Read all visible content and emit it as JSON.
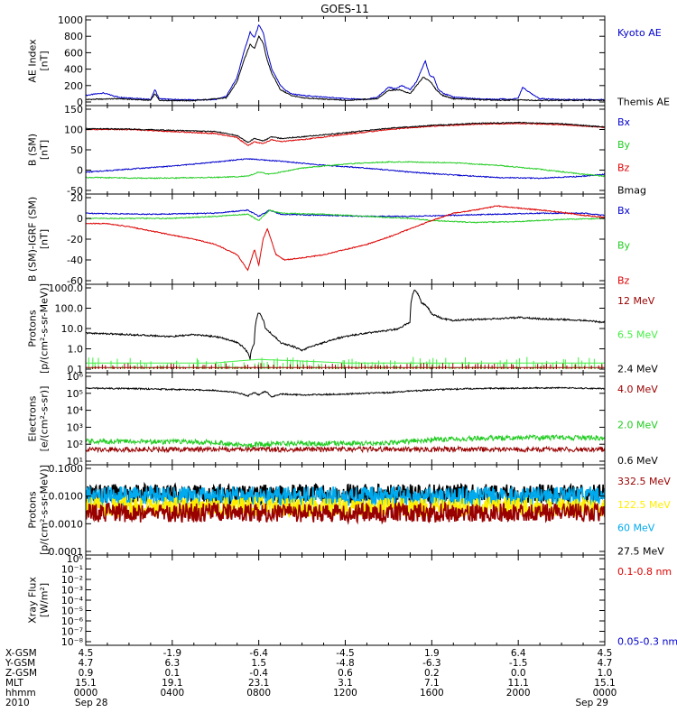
{
  "title": "GOES-11",
  "colors": {
    "black": "#000000",
    "blue": "#0000cc",
    "green": "#22cc22",
    "red": "#dd0000",
    "darkred": "#990000",
    "yellow": "#ffee00",
    "cyan": "#00aaee",
    "lime": "#44ee44"
  },
  "time_axis": {
    "start": "2010-09-28 00:00",
    "end": "2010-09-29 00:00",
    "rows": [
      {
        "label": "X-GSM",
        "values": [
          "4.5",
          "-1.9",
          "-6.4",
          "-4.5",
          "1.9",
          "6.4",
          "4.5"
        ]
      },
      {
        "label": "Y-GSM",
        "values": [
          "4.7",
          "6.3",
          "1.5",
          "-4.8",
          "-6.3",
          "-1.5",
          "4.7"
        ]
      },
      {
        "label": "Z-GSM",
        "values": [
          "0.9",
          "0.1",
          "-0.4",
          "0.6",
          "0.2",
          "0.0",
          "1.0"
        ]
      },
      {
        "label": "MLT",
        "values": [
          "15.1",
          "19.1",
          "23.1",
          "3.1",
          "7.1",
          "11.1",
          "15.1"
        ]
      },
      {
        "label": "hhmm",
        "values": [
          "0000",
          "0400",
          "0800",
          "1200",
          "1600",
          "2000",
          "0000"
        ]
      },
      {
        "label": "2010",
        "values": [
          "Sep 28",
          "",
          "",
          "",
          "",
          "",
          "Sep 29"
        ]
      }
    ]
  },
  "chart_data": [
    {
      "type": "line",
      "ylabel": "AE Index\n[nT]",
      "ylim": [
        0,
        1000
      ],
      "yticks": [
        "0",
        "200",
        "400",
        "600",
        "800",
        "1000"
      ],
      "legend": [
        {
          "name": "Kyoto AE",
          "color": "#0000cc"
        },
        {
          "name": "Themis AE",
          "color": "#000000"
        }
      ],
      "series": [
        {
          "name": "Kyoto AE",
          "color": "#0000cc",
          "hours": [
            0,
            0.8,
            1.5,
            2.5,
            3,
            3.2,
            3.4,
            4,
            5,
            6,
            6.5,
            7,
            7.3,
            7.6,
            7.8,
            8,
            8.2,
            8.4,
            8.6,
            8.8,
            9,
            9.2,
            9.5,
            10,
            11,
            12,
            13,
            13.5,
            14,
            14.3,
            14.6,
            15,
            15.3,
            15.5,
            15.7,
            15.9,
            16.1,
            16.3,
            16.6,
            17,
            18,
            19,
            19.3,
            19.5,
            19.7,
            20,
            20.2,
            20.5,
            21,
            22,
            23,
            24
          ],
          "values": [
            80,
            110,
            60,
            40,
            30,
            150,
            40,
            30,
            25,
            30,
            70,
            300,
            600,
            850,
            780,
            940,
            850,
            600,
            400,
            300,
            200,
            150,
            100,
            80,
            60,
            40,
            30,
            60,
            180,
            160,
            200,
            150,
            250,
            380,
            500,
            320,
            300,
            150,
            100,
            60,
            40,
            30,
            40,
            30,
            30,
            50,
            180,
            120,
            40,
            30,
            30,
            30
          ]
        },
        {
          "name": "Themis AE",
          "color": "#000000",
          "hours": [
            0,
            1.5,
            3,
            3.2,
            3.4,
            5,
            6.5,
            7,
            7.3,
            7.6,
            7.8,
            8,
            8.2,
            8.4,
            8.6,
            8.8,
            9,
            9.5,
            10,
            12,
            13.5,
            14,
            14.5,
            15,
            15.3,
            15.6,
            15.9,
            16.2,
            16.5,
            17,
            19,
            20,
            21,
            24
          ],
          "values": [
            30,
            40,
            20,
            100,
            20,
            15,
            50,
            250,
            500,
            700,
            650,
            800,
            720,
            500,
            350,
            250,
            150,
            80,
            50,
            20,
            40,
            140,
            150,
            100,
            200,
            300,
            260,
            150,
            80,
            40,
            20,
            25,
            20,
            20
          ]
        }
      ]
    },
    {
      "type": "line",
      "ylabel": "B (SM)\n[nT]",
      "ylim": [
        -50,
        150
      ],
      "yticks": [
        "-50",
        "0",
        "50",
        "100",
        "150"
      ],
      "legend": [
        {
          "name": "Bx",
          "color": "#0000cc"
        },
        {
          "name": "By",
          "color": "#22cc22"
        },
        {
          "name": "Bz",
          "color": "#dd0000"
        },
        {
          "name": "Bmag",
          "color": "#000000"
        }
      ],
      "series": [
        {
          "name": "Bx",
          "color": "#0000cc",
          "hours": [
            0,
            4,
            6,
            7.5,
            8.2,
            9,
            11,
            13,
            15,
            17,
            19,
            21,
            23,
            24
          ],
          "values": [
            -5,
            10,
            20,
            28,
            25,
            22,
            12,
            5,
            -5,
            -12,
            -18,
            -20,
            -15,
            -10
          ]
        },
        {
          "name": "By",
          "color": "#22cc22",
          "hours": [
            0,
            3,
            6,
            7.5,
            8,
            8.5,
            10,
            12,
            13,
            14,
            15,
            17,
            19,
            21,
            23,
            24
          ],
          "values": [
            -18,
            -20,
            -18,
            -15,
            -5,
            -10,
            5,
            15,
            18,
            20,
            20,
            18,
            12,
            2,
            -10,
            -15
          ]
        },
        {
          "name": "Bz",
          "color": "#dd0000",
          "hours": [
            0,
            2,
            4,
            6,
            7,
            7.5,
            7.8,
            8.2,
            8.6,
            9,
            10,
            12,
            14,
            16,
            18,
            20,
            22,
            24
          ],
          "values": [
            100,
            100,
            95,
            90,
            80,
            60,
            70,
            65,
            75,
            70,
            75,
            88,
            100,
            108,
            113,
            115,
            112,
            105
          ]
        },
        {
          "name": "Bmag",
          "color": "#000000",
          "hours": [
            0,
            2,
            4,
            6,
            7,
            7.5,
            7.8,
            8.2,
            8.6,
            9,
            10,
            12,
            14,
            16,
            18,
            20,
            22,
            24
          ],
          "values": [
            102,
            101,
            98,
            95,
            85,
            68,
            78,
            72,
            82,
            78,
            82,
            92,
            103,
            110,
            115,
            117,
            114,
            106
          ]
        }
      ]
    },
    {
      "type": "line",
      "ylabel": "B (SM)-IGRF (SM)\n[nT]",
      "ylim": [
        -60,
        20
      ],
      "yticks": [
        "-60",
        "-40",
        "-20",
        "0",
        "20"
      ],
      "legend": [
        {
          "name": "Bx",
          "color": "#0000cc"
        },
        {
          "name": "By",
          "color": "#22cc22"
        },
        {
          "name": "Bz",
          "color": "#dd0000"
        }
      ],
      "series": [
        {
          "name": "Bx",
          "color": "#0000cc",
          "hours": [
            0,
            3,
            6,
            7.5,
            8,
            8.5,
            9,
            11,
            13,
            15,
            17,
            19,
            21,
            23,
            24
          ],
          "values": [
            5,
            4,
            5,
            8,
            2,
            8,
            4,
            3,
            2,
            2,
            3,
            4,
            5,
            5,
            3
          ]
        },
        {
          "name": "By",
          "color": "#22cc22",
          "hours": [
            0,
            4,
            6,
            7.5,
            8,
            8.5,
            9,
            11,
            13,
            15,
            16,
            18,
            20,
            22,
            24
          ],
          "values": [
            0,
            0,
            2,
            4,
            -2,
            8,
            5,
            4,
            2,
            0,
            -2,
            -4,
            -3,
            -1,
            0
          ]
        },
        {
          "name": "Bz",
          "color": "#dd0000",
          "hours": [
            0,
            1,
            2,
            3,
            4,
            5,
            6,
            7,
            7.5,
            7.8,
            8,
            8.2,
            8.4,
            8.8,
            9.2,
            10,
            11,
            12,
            13,
            14,
            15,
            16,
            17,
            18,
            19,
            20,
            21,
            22,
            23,
            24
          ],
          "values": [
            -5,
            -5,
            -8,
            -12,
            -16,
            -20,
            -25,
            -35,
            -50,
            -30,
            -45,
            -20,
            -10,
            -35,
            -40,
            -38,
            -35,
            -30,
            -25,
            -18,
            -10,
            -2,
            5,
            8,
            12,
            10,
            8,
            6,
            3,
            1
          ]
        }
      ]
    },
    {
      "type": "line",
      "yscale": "log",
      "ylabel": "Protons\n[p/(cm²-s-sr-MeV)]",
      "ylim": [
        0.1,
        1000
      ],
      "yticks": [
        "0.1",
        "1.0",
        "10.0",
        "100.0",
        "1000.0"
      ],
      "legend": [
        {
          "name": "12 MeV",
          "color": "#990000"
        },
        {
          "name": "6.5 MeV",
          "color": "#44ee44"
        },
        {
          "name": "2.4 MeV",
          "color": "#000000"
        }
      ],
      "series": [
        {
          "name": "2.4 MeV",
          "color": "#000000",
          "hours": [
            0,
            2,
            4,
            5,
            6,
            7,
            7.6,
            7.8,
            8,
            8.3,
            8.6,
            9,
            10,
            11,
            12,
            13,
            14,
            14.5,
            15,
            15.2,
            15.5,
            16,
            16.5,
            17,
            18,
            19,
            20,
            21,
            22,
            23,
            24
          ],
          "values": [
            6,
            5,
            4,
            5,
            4,
            2,
            0.3,
            2,
            60,
            10,
            5,
            2,
            0.8,
            2,
            4,
            6,
            8,
            10,
            20,
            800,
            200,
            50,
            30,
            25,
            28,
            30,
            35,
            30,
            28,
            25,
            20
          ]
        },
        {
          "name": "6.5 MeV",
          "color": "#44ee44",
          "hours": [
            0,
            6,
            8,
            12,
            16,
            20,
            24
          ],
          "values": [
            0.2,
            0.2,
            0.3,
            0.2,
            0.2,
            0.2,
            0.2
          ]
        },
        {
          "name": "12 MeV",
          "color": "#990000",
          "hours": [
            0,
            6,
            12,
            18,
            24
          ],
          "values": [
            0.12,
            0.12,
            0.12,
            0.12,
            0.12
          ]
        }
      ]
    },
    {
      "type": "line",
      "yscale": "log",
      "ylabel": "Electrons\n[e/(cm²-s-sr)]",
      "ylim": [
        10,
        1000000
      ],
      "yticks": [
        "10¹",
        "10²",
        "10³",
        "10⁴",
        "10⁵",
        "10⁶"
      ],
      "legend": [
        {
          "name": "4.0 MeV",
          "color": "#990000"
        },
        {
          "name": "2.0 MeV",
          "color": "#22cc22"
        },
        {
          "name": "0.6 MeV",
          "color": "#000000"
        }
      ],
      "series": [
        {
          "name": "0.6 MeV",
          "color": "#000000",
          "hours": [
            0,
            2,
            4,
            6,
            7,
            7.5,
            7.8,
            8,
            8.3,
            8.6,
            9,
            10,
            12,
            14,
            16,
            18,
            20,
            22,
            24
          ],
          "values": [
            200000,
            190000,
            170000,
            150000,
            110000,
            70000,
            110000,
            80000,
            130000,
            60000,
            90000,
            80000,
            90000,
            110000,
            160000,
            190000,
            200000,
            210000,
            190000
          ]
        },
        {
          "name": "2.0 MeV",
          "color": "#22cc22",
          "hours": [
            0,
            4,
            6,
            7.5,
            8,
            9,
            12,
            14,
            16,
            18,
            20,
            22,
            24
          ],
          "values": [
            150,
            140,
            130,
            80,
            100,
            110,
            110,
            120,
            180,
            220,
            240,
            250,
            240
          ]
        },
        {
          "name": "4.0 MeV",
          "color": "#990000",
          "hours": [
            0,
            6,
            12,
            18,
            24
          ],
          "values": [
            50,
            50,
            50,
            50,
            50
          ]
        }
      ]
    },
    {
      "type": "line",
      "yscale": "log",
      "ylabel": "Protons\n[p/(cm²-s-sr-MeV)]",
      "ylim": [
        0.0001,
        0.1
      ],
      "yticks": [
        "0.0001",
        "0.0010",
        "0.0100",
        "0.1000"
      ],
      "legend": [
        {
          "name": "332.5 MeV",
          "color": "#990000"
        },
        {
          "name": "122.5 MeV",
          "color": "#ffee00"
        },
        {
          "name": "60 MeV",
          "color": "#00aaee"
        },
        {
          "name": "27.5 MeV",
          "color": "#000000"
        }
      ],
      "series": [
        {
          "name": "27.5 MeV",
          "color": "#000000",
          "hours": [
            0,
            6,
            12,
            18,
            24
          ],
          "values": [
            0.012,
            0.012,
            0.012,
            0.012,
            0.012
          ]
        },
        {
          "name": "60 MeV",
          "color": "#00aaee",
          "hours": [
            0,
            6,
            12,
            18,
            24
          ],
          "values": [
            0.01,
            0.01,
            0.01,
            0.01,
            0.01
          ]
        },
        {
          "name": "122.5 MeV",
          "color": "#ffee00",
          "hours": [
            0,
            6,
            12,
            18,
            24
          ],
          "values": [
            0.004,
            0.004,
            0.004,
            0.004,
            0.004
          ]
        },
        {
          "name": "332.5 MeV",
          "color": "#990000",
          "hours": [
            0,
            6,
            12,
            18,
            24
          ],
          "values": [
            0.0025,
            0.0025,
            0.0025,
            0.0025,
            0.0025
          ]
        }
      ]
    },
    {
      "type": "line",
      "yscale": "log",
      "ylabel": "Xray Flux\n[W/m²]",
      "ylim": [
        1e-08,
        1
      ],
      "yticks": [
        "10⁻⁸",
        "10⁻⁷",
        "10⁻⁶",
        "10⁻⁵",
        "10⁻⁴",
        "10⁻³",
        "10⁻²",
        "10⁻¹",
        "10⁰"
      ],
      "legend": [
        {
          "name": "0.1-0.8 nm",
          "color": "#dd0000"
        },
        {
          "name": "0.05-0.3 nm",
          "color": "#0000cc"
        }
      ],
      "series": []
    }
  ]
}
